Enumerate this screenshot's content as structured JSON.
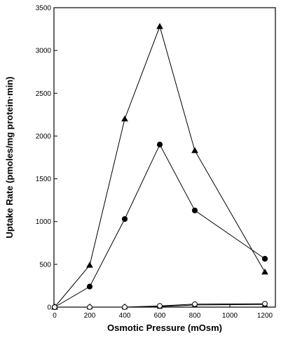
{
  "chart_data": {
    "type": "scatter",
    "xlabel": "Osmotic Pressure (mOsm)",
    "ylabel": "Uptake Rate (pmoles/mg protein·min)",
    "xlim": [
      0,
      1250
    ],
    "ylim": [
      0,
      3500
    ],
    "xticks": [
      0,
      200,
      400,
      600,
      800,
      1000,
      1200
    ],
    "yticks": [
      0,
      500,
      1000,
      1500,
      2000,
      2500,
      3000,
      3500
    ],
    "grid": false,
    "series": [
      {
        "marker": "triangle-filled",
        "x": [
          0,
          200,
          400,
          600,
          800,
          1200
        ],
        "y": [
          0,
          490,
          2200,
          3280,
          1830,
          410
        ]
      },
      {
        "marker": "circle-filled",
        "x": [
          0,
          200,
          400,
          600,
          800,
          1200
        ],
        "y": [
          0,
          240,
          1030,
          1900,
          1130,
          565
        ]
      },
      {
        "marker": "triangle-open",
        "x": [
          0,
          200,
          400,
          600,
          800,
          1200
        ],
        "y": [
          0,
          0,
          0,
          5,
          25,
          30
        ]
      },
      {
        "marker": "circle-open",
        "x": [
          0,
          200,
          400,
          600,
          800,
          1200
        ],
        "y": [
          0,
          0,
          0,
          15,
          35,
          40
        ]
      }
    ]
  }
}
